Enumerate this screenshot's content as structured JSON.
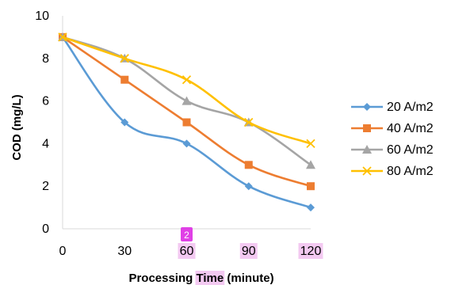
{
  "chart_data": {
    "type": "line",
    "xlabel_parts": [
      "Processing ",
      "Time",
      " (minute)"
    ],
    "ylabel": "COD (mg/L)",
    "x": [
      0,
      30,
      60,
      90,
      120
    ],
    "xticks": [
      "0",
      "30",
      "60",
      "90",
      "120"
    ],
    "highlighted_xticks": [
      "60",
      "90",
      "120"
    ],
    "yticks": [
      "0",
      "2",
      "4",
      "6",
      "8",
      "10"
    ],
    "ylim": [
      0,
      10
    ],
    "grid": false,
    "legend_position": "right",
    "series": [
      {
        "name": "20 A/m2",
        "values": [
          9,
          5,
          4,
          2,
          1
        ],
        "color": "#5b9bd5",
        "marker": "diamond"
      },
      {
        "name": "40 A/m2",
        "values": [
          9,
          7,
          5,
          3,
          2
        ],
        "color": "#ed7d31",
        "marker": "square"
      },
      {
        "name": "60 A/m2",
        "values": [
          9,
          8,
          6,
          5,
          3
        ],
        "color": "#a5a5a5",
        "marker": "triangle"
      },
      {
        "name": "80 A/m2",
        "values": [
          9,
          8,
          7,
          5,
          4
        ],
        "color": "#ffc000",
        "marker": "x"
      }
    ]
  },
  "annotations": {
    "badge_text": "2",
    "badge_color": "#e040e6",
    "highlight_color": "#f3c9f1"
  }
}
